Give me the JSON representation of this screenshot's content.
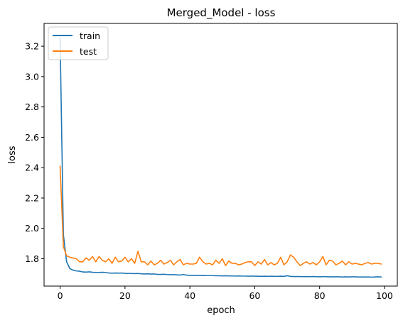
{
  "chart_data": {
    "type": "line",
    "title": "Merged_Model - loss",
    "xlabel": "epoch",
    "ylabel": "loss",
    "xlim": [
      -4.95,
      103.95
    ],
    "ylim": [
      1.62,
      3.35
    ],
    "xticks": [
      0,
      20,
      40,
      60,
      80,
      100
    ],
    "yticks": [
      1.8,
      2.0,
      2.2,
      2.4,
      2.6,
      2.8,
      3.0,
      3.2
    ],
    "ytick_labels": [
      "1.8",
      "2.0",
      "2.2",
      "2.4",
      "2.6",
      "2.8",
      "3.0",
      "3.2"
    ],
    "grid": false,
    "legend_position": "top-left",
    "series": [
      {
        "name": "train",
        "color": "#1f77b4",
        "values": [
          3.25,
          1.96,
          1.78,
          1.735,
          1.725,
          1.72,
          1.718,
          1.713,
          1.712,
          1.714,
          1.711,
          1.71,
          1.71,
          1.711,
          1.71,
          1.706,
          1.705,
          1.706,
          1.705,
          1.706,
          1.704,
          1.703,
          1.703,
          1.702,
          1.703,
          1.701,
          1.7,
          1.701,
          1.699,
          1.7,
          1.697,
          1.697,
          1.698,
          1.696,
          1.695,
          1.695,
          1.694,
          1.693,
          1.696,
          1.692,
          1.691,
          1.69,
          1.69,
          1.689,
          1.69,
          1.689,
          1.689,
          1.689,
          1.688,
          1.688,
          1.687,
          1.688,
          1.687,
          1.687,
          1.686,
          1.687,
          1.686,
          1.686,
          1.685,
          1.686,
          1.685,
          1.685,
          1.684,
          1.685,
          1.684,
          1.685,
          1.684,
          1.684,
          1.685,
          1.684,
          1.688,
          1.684,
          1.683,
          1.683,
          1.683,
          1.682,
          1.683,
          1.682,
          1.683,
          1.682,
          1.681,
          1.682,
          1.682,
          1.681,
          1.681,
          1.681,
          1.681,
          1.68,
          1.681,
          1.68,
          1.681,
          1.681,
          1.68,
          1.68,
          1.68,
          1.68,
          1.679,
          1.68,
          1.681,
          1.68
        ]
      },
      {
        "name": "test",
        "color": "#ff7f0e",
        "values": [
          2.41,
          1.88,
          1.82,
          1.81,
          1.805,
          1.8,
          1.78,
          1.78,
          1.805,
          1.79,
          1.815,
          1.78,
          1.815,
          1.79,
          1.78,
          1.8,
          1.77,
          1.81,
          1.78,
          1.785,
          1.81,
          1.78,
          1.8,
          1.77,
          1.85,
          1.78,
          1.78,
          1.76,
          1.785,
          1.76,
          1.77,
          1.79,
          1.765,
          1.775,
          1.79,
          1.76,
          1.78,
          1.795,
          1.76,
          1.77,
          1.765,
          1.765,
          1.77,
          1.81,
          1.78,
          1.765,
          1.77,
          1.76,
          1.79,
          1.77,
          1.8,
          1.755,
          1.785,
          1.77,
          1.77,
          1.76,
          1.765,
          1.775,
          1.78,
          1.78,
          1.755,
          1.78,
          1.765,
          1.795,
          1.76,
          1.775,
          1.76,
          1.77,
          1.81,
          1.76,
          1.78,
          1.825,
          1.81,
          1.78,
          1.755,
          1.77,
          1.78,
          1.765,
          1.775,
          1.76,
          1.78,
          1.815,
          1.76,
          1.79,
          1.785,
          1.76,
          1.77,
          1.785,
          1.76,
          1.78,
          1.765,
          1.77,
          1.765,
          1.76,
          1.77,
          1.775,
          1.765,
          1.77,
          1.77,
          1.765
        ]
      }
    ]
  }
}
